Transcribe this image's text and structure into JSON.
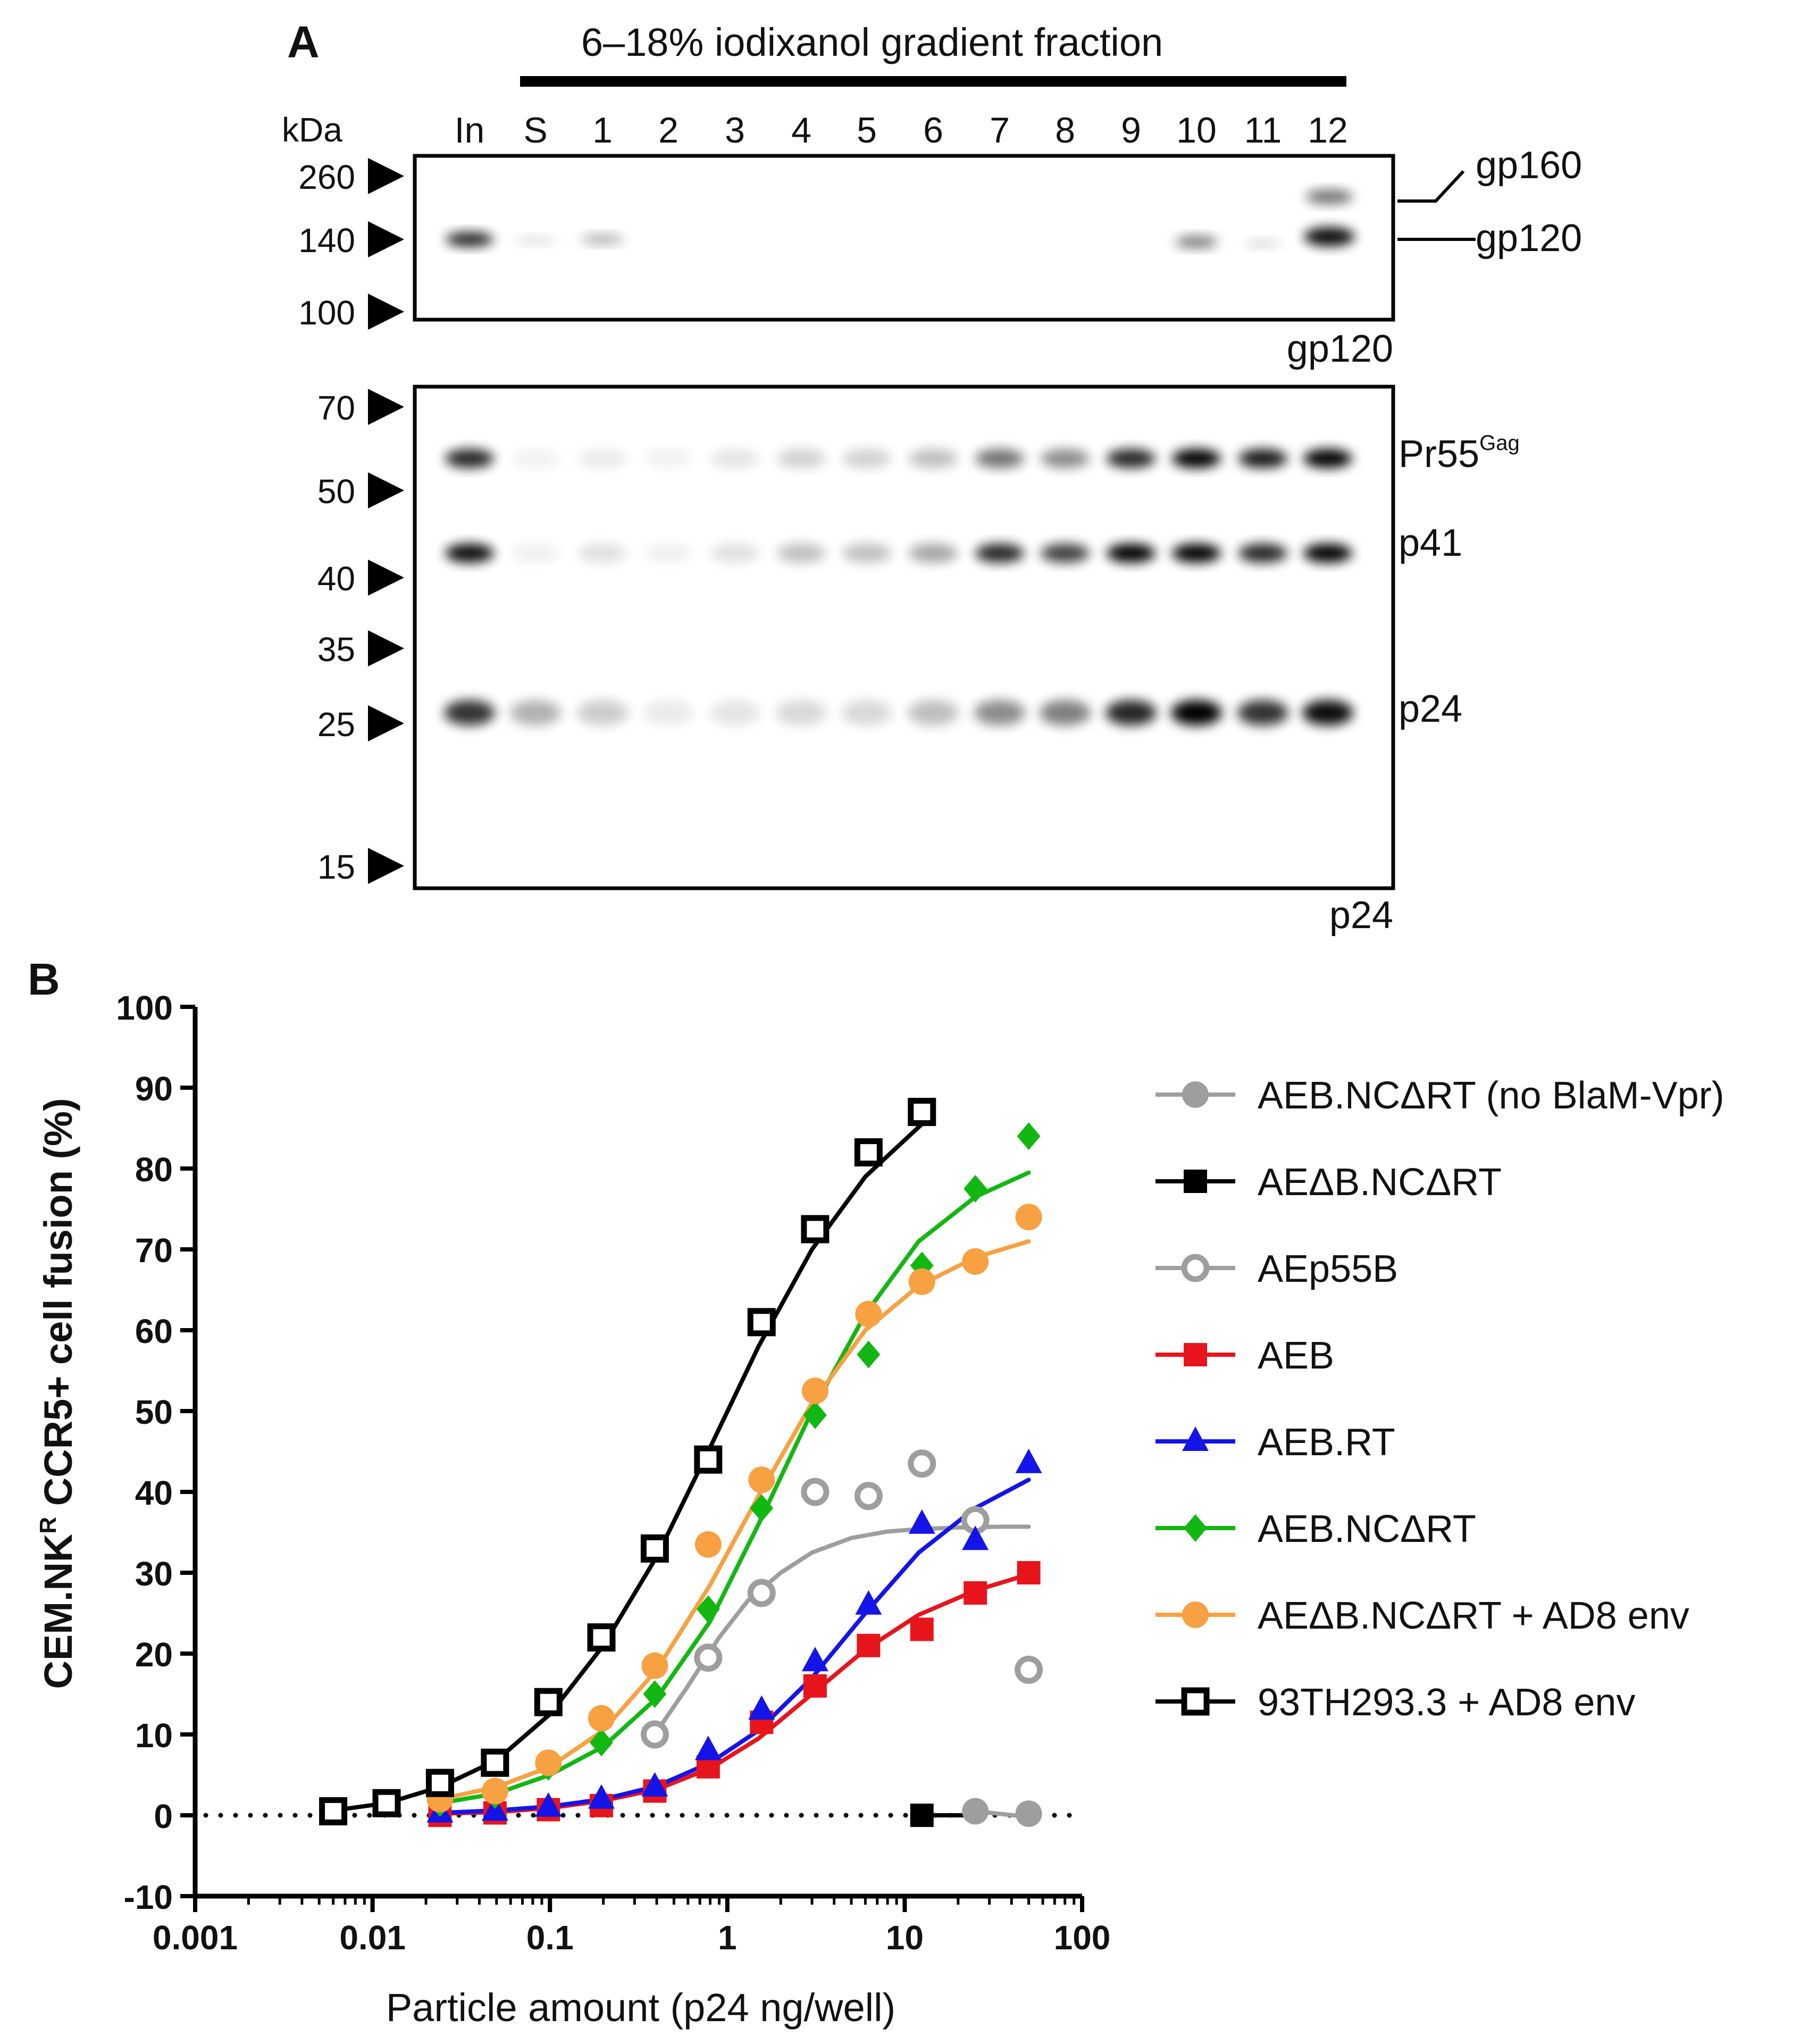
{
  "panel_a": {
    "label": "A",
    "header": "6–18% iodixanol gradient fraction",
    "kda_label": "kDa",
    "lanes": [
      "In",
      "S",
      "1",
      "2",
      "3",
      "4",
      "5",
      "6",
      "7",
      "8",
      "9",
      "10",
      "11",
      "12"
    ],
    "blot_top": {
      "antibody": "gp120",
      "markers": [
        "260",
        "140",
        "100"
      ],
      "bands": [
        "gp160",
        "gp120"
      ]
    },
    "blot_bottom": {
      "antibody": "p24",
      "markers": [
        "70",
        "50",
        "40",
        "35",
        "25",
        "15"
      ],
      "bands": [
        {
          "main": "Pr55",
          "sup": "Gag"
        },
        {
          "main": "p41",
          "sup": ""
        },
        {
          "main": "p24",
          "sup": ""
        }
      ]
    }
  },
  "panel_b": {
    "label": "B"
  },
  "chart_data": {
    "type": "scatter",
    "title": "",
    "xlabel": "Particle amount (p24 ng/well)",
    "ylabel": {
      "pre": "CEM.NK",
      "sup": "R",
      "post": " CCR5+ cell fusion (%)"
    },
    "xscale": "log",
    "xlim": [
      0.001,
      100
    ],
    "ylim": [
      -10,
      100
    ],
    "xticks": [
      0.001,
      0.01,
      0.1,
      1,
      10,
      100
    ],
    "xtick_labels": [
      "0.001",
      "0.01",
      "0.1",
      "1",
      "10",
      "100"
    ],
    "yticks": [
      -10,
      0,
      10,
      20,
      30,
      40,
      50,
      60,
      70,
      80,
      90,
      100
    ],
    "ytick_labels": [
      "-10",
      "0",
      "10",
      "20",
      "30",
      "40",
      "50",
      "60",
      "70",
      "80",
      "90",
      "100"
    ],
    "baseline": 0,
    "legend_position": "right",
    "series": [
      {
        "name": "AEB.NCΔRT (no BlaM-Vpr)",
        "color": "#9e9e9e",
        "marker": "circle-filled",
        "x": [
          25,
          50
        ],
        "y": [
          0.5,
          0.2
        ],
        "fit": {
          "x": [
            25,
            50
          ],
          "y": [
            0.5,
            -0.2
          ]
        }
      },
      {
        "name": "AEΔB.NCΔRT",
        "color": "#000000",
        "marker": "square-filled",
        "x": [
          12.5
        ],
        "y": [
          0
        ],
        "fit": {
          "x": [
            12.5,
            25
          ],
          "y": [
            0,
            0
          ]
        }
      },
      {
        "name": "AEp55B",
        "color": "#9e9e9e",
        "marker": "circle-open",
        "x": [
          0.39,
          0.78,
          1.56,
          3.125,
          6.25,
          12.5,
          25,
          50
        ],
        "y": [
          10,
          19.5,
          27.5,
          40,
          39.5,
          43.5,
          36.5,
          18
        ],
        "fit": {
          "x": [
            0.39,
            0.6,
            0.9,
            1.3,
            2,
            3,
            5,
            8,
            12,
            20,
            35,
            50
          ],
          "y": [
            10,
            16,
            22,
            26.5,
            30,
            32.5,
            34.3,
            35.1,
            35.4,
            35.6,
            35.7,
            35.7
          ]
        }
      },
      {
        "name": "AEB",
        "color": "#e8141c",
        "marker": "square-filled",
        "x": [
          0.024,
          0.049,
          0.098,
          0.195,
          0.39,
          0.78,
          1.56,
          3.125,
          6.25,
          12.5,
          25,
          50
        ],
        "y": [
          0,
          0.3,
          0.7,
          1.2,
          3,
          6,
          11.5,
          16,
          21,
          23,
          27.5,
          30
        ],
        "fit": {
          "x": [
            0.024,
            0.05,
            0.1,
            0.2,
            0.4,
            0.8,
            1.5,
            3,
            6,
            12,
            25,
            50
          ],
          "y": [
            0.2,
            0.4,
            0.9,
            1.8,
            3.2,
            5.8,
            9.5,
            15,
            20.5,
            24.8,
            27.8,
            29.8
          ]
        }
      },
      {
        "name": "AEB.RT",
        "color": "#1414e8",
        "marker": "triangle-filled",
        "x": [
          0.024,
          0.049,
          0.098,
          0.195,
          0.39,
          0.78,
          1.56,
          3.125,
          6.25,
          12.5,
          25,
          50
        ],
        "y": [
          0.3,
          0.5,
          1,
          2,
          3.5,
          8,
          13,
          19,
          26,
          36,
          34,
          43.5
        ],
        "fit": {
          "x": [
            0.024,
            0.05,
            0.1,
            0.2,
            0.4,
            0.8,
            1.5,
            3,
            6,
            12,
            25,
            50
          ],
          "y": [
            0.3,
            0.6,
            1.1,
            2,
            3.6,
            6.5,
            10.5,
            17,
            25,
            32.5,
            38,
            41.5
          ]
        }
      },
      {
        "name": "AEB.NCΔRT",
        "color": "#12b712",
        "marker": "diamond-filled",
        "x": [
          0.024,
          0.049,
          0.098,
          0.195,
          0.39,
          0.78,
          1.56,
          3.125,
          6.25,
          12.5,
          25,
          50
        ],
        "y": [
          1.5,
          2.5,
          6,
          9,
          15,
          25.5,
          38,
          49.5,
          57,
          68,
          77.5,
          84
        ],
        "fit": {
          "x": [
            0.024,
            0.05,
            0.1,
            0.2,
            0.4,
            0.8,
            1.5,
            3,
            6,
            12,
            25,
            50
          ],
          "y": [
            1.5,
            2.7,
            5,
            8.5,
            14.5,
            24,
            36,
            50,
            62,
            71,
            76.5,
            79.5
          ]
        }
      },
      {
        "name": "AEΔB.NCΔRT + AD8 env",
        "color": "#f7a142",
        "marker": "circle-filled",
        "x": [
          0.024,
          0.049,
          0.098,
          0.195,
          0.39,
          0.78,
          1.56,
          3.125,
          6.25,
          12.5,
          25,
          50
        ],
        "y": [
          2,
          3,
          6.5,
          12,
          18.5,
          33.5,
          41.5,
          52.5,
          62,
          66,
          68.5,
          74
        ],
        "fit": {
          "x": [
            0.024,
            0.05,
            0.1,
            0.2,
            0.4,
            0.8,
            1.5,
            3,
            6,
            12,
            25,
            50
          ],
          "y": [
            2,
            3.5,
            6,
            10.5,
            18,
            28.5,
            39.5,
            51,
            60,
            65.5,
            69,
            71
          ]
        }
      },
      {
        "name": "93TH293.3 + AD8 env",
        "color": "#000000",
        "marker": "square-open",
        "x": [
          0.006,
          0.012,
          0.024,
          0.049,
          0.098,
          0.195,
          0.39,
          0.78,
          1.56,
          3.125,
          6.25,
          12.5
        ],
        "y": [
          0.5,
          1.5,
          4,
          6.5,
          14,
          22,
          33,
          44,
          61,
          72.5,
          82,
          87
        ],
        "fit": {
          "x": [
            0.006,
            0.012,
            0.024,
            0.05,
            0.1,
            0.2,
            0.4,
            0.8,
            1.5,
            3,
            6,
            12.5
          ],
          "y": [
            0.6,
            1.5,
            3.5,
            6.8,
            12.5,
            21,
            32,
            45.5,
            58,
            70,
            79,
            85.5
          ]
        }
      }
    ]
  }
}
